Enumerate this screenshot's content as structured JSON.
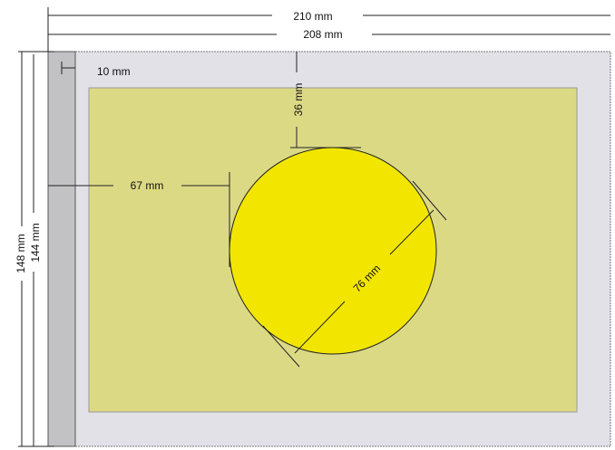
{
  "dimensions": {
    "sheet_width": "210 mm",
    "inner_width": "208 mm",
    "margin": "10 mm",
    "circle_top": "36 mm",
    "circle_left": "67 mm",
    "diameter": "76 mm",
    "sheet_height": "148 mm",
    "inner_height": "144 mm"
  }
}
